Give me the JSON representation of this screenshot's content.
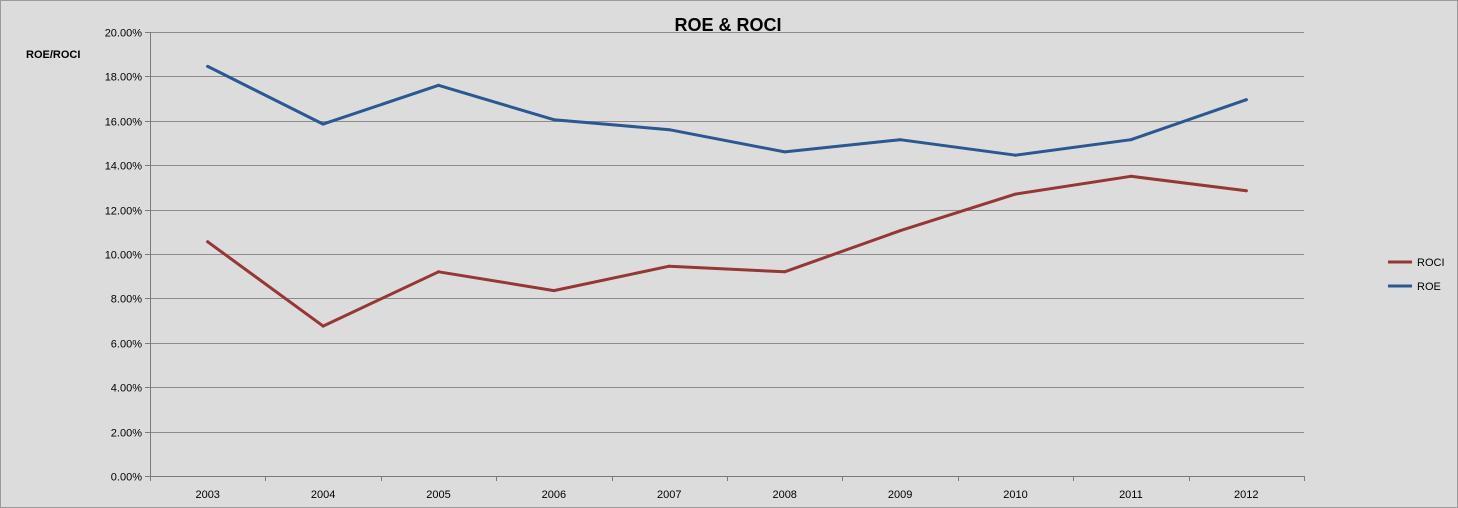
{
  "chart_data": {
    "type": "line",
    "title": "ROE & ROCI",
    "xlabel": "",
    "ylabel": "ROE/ROCI",
    "x": [
      "2003",
      "2004",
      "2005",
      "2006",
      "2007",
      "2008",
      "2009",
      "2010",
      "2011",
      "2012"
    ],
    "ylim": [
      0,
      20
    ],
    "yticks": [
      "0.00%",
      "2.00%",
      "4.00%",
      "6.00%",
      "8.00%",
      "10.00%",
      "12.00%",
      "14.00%",
      "16.00%",
      "18.00%",
      "20.00%"
    ],
    "grid": true,
    "legend_position": "right",
    "series": [
      {
        "name": "ROCI",
        "color": "#953735",
        "values": [
          10.55,
          6.75,
          9.2,
          8.35,
          9.45,
          9.2,
          11.05,
          12.7,
          13.5,
          12.85
        ]
      },
      {
        "name": "ROE",
        "color": "#2c5791",
        "values": [
          18.45,
          15.85,
          17.6,
          16.05,
          15.6,
          14.6,
          15.15,
          14.45,
          15.15,
          16.95
        ]
      }
    ]
  }
}
